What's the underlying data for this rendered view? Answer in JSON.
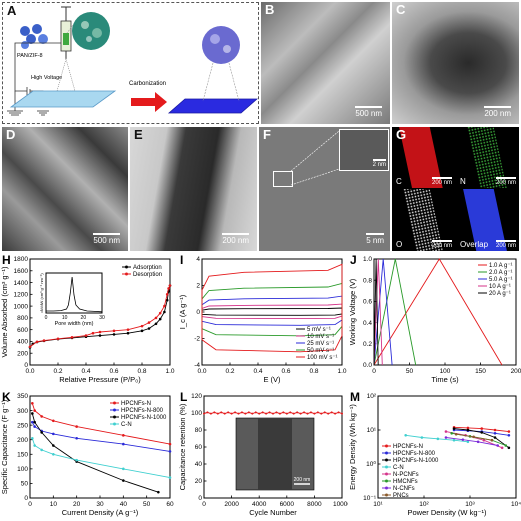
{
  "panelA": {
    "label": "A",
    "pan_zif_label": "PAN/ZIF-8",
    "voltage_label": "High Voltage",
    "arrow_label": "Carbonization"
  },
  "panelB": {
    "label": "B",
    "scale": "500 nm"
  },
  "panelC": {
    "label": "C",
    "scale": "200 nm"
  },
  "panelD": {
    "label": "D",
    "scale": "500 nm"
  },
  "panelE": {
    "label": "E",
    "scale": "200 nm"
  },
  "panelF": {
    "label": "F",
    "scale": "5 nm",
    "inset_scale": "2 nm"
  },
  "panelG": {
    "label": "G",
    "maps": [
      {
        "element": "C",
        "scale": "200 nm",
        "color": "#d8141a"
      },
      {
        "element": "N",
        "scale": "200 nm",
        "color": "#2a8a2a"
      },
      {
        "element": "O",
        "scale": "200 nm",
        "color": "#cfcfcf"
      },
      {
        "element": "Overlap",
        "scale": "200 nm",
        "color": "#2a3ad8"
      }
    ]
  },
  "colors": {
    "adsorption": "#000000",
    "desorption": "#e41a1c"
  },
  "chart_data": [
    {
      "panel": "H",
      "type": "line",
      "xlabel": "Relative Pressure (P/P₀)",
      "ylabel": "Volume Absorbed (cm³ g⁻¹)",
      "xlim": [
        0,
        1
      ],
      "ylim": [
        0,
        1800
      ],
      "xticks": [
        "0.0",
        "0.2",
        "0.4",
        "0.6",
        "0.8",
        "1.0"
      ],
      "yticks": [
        "0",
        "200",
        "400",
        "600",
        "800",
        "1000",
        "1200",
        "1400",
        "1600",
        "1800"
      ],
      "series": [
        {
          "name": "Adsorption",
          "color": "#000000",
          "x": [
            0.0,
            0.02,
            0.05,
            0.1,
            0.2,
            0.3,
            0.4,
            0.5,
            0.6,
            0.7,
            0.8,
            0.85,
            0.9,
            0.93,
            0.96,
            0.98,
            0.99,
            1.0
          ],
          "y": [
            300,
            360,
            390,
            410,
            440,
            460,
            480,
            500,
            520,
            540,
            580,
            620,
            700,
            780,
            900,
            1100,
            1250,
            1350
          ]
        },
        {
          "name": "Desorption",
          "color": "#e41a1c",
          "x": [
            1.0,
            0.99,
            0.98,
            0.96,
            0.93,
            0.9,
            0.85,
            0.8,
            0.7,
            0.6,
            0.5,
            0.45,
            0.4,
            0.3,
            0.2,
            0.1,
            0.05,
            0.0
          ],
          "y": [
            1350,
            1300,
            1200,
            1000,
            880,
            800,
            720,
            660,
            600,
            580,
            560,
            540,
            500,
            470,
            445,
            415,
            395,
            310
          ]
        }
      ],
      "inset": {
        "xlabel": "Pore width (nm)",
        "ylabel": "dV/dW (cm³ g⁻¹ nm⁻¹)",
        "xticks": [
          "0",
          "10",
          "20",
          "30"
        ],
        "x": [
          0,
          4,
          8,
          11,
          12,
          13,
          14,
          15,
          16,
          18,
          22,
          26,
          30
        ],
        "y": [
          0.05,
          0.05,
          0.06,
          0.1,
          0.2,
          0.5,
          0.9,
          0.45,
          0.2,
          0.1,
          0.05,
          0.04,
          0.03
        ]
      },
      "legend": "top-left"
    },
    {
      "panel": "I",
      "type": "line",
      "xlabel": "E (V)",
      "ylabel": "I_c (A g⁻¹)",
      "xlim": [
        0,
        1
      ],
      "ylim": [
        -4,
        4
      ],
      "xticks": [
        "0.0",
        "0.2",
        "0.4",
        "0.6",
        "0.8",
        "1.0"
      ],
      "yticks": [
        "-4",
        "-2",
        "0",
        "2",
        "4"
      ],
      "series": [
        {
          "name": "5 mV s⁻¹",
          "color": "#000000",
          "current": 0.25
        },
        {
          "name": "10 mV s⁻¹",
          "color": "#d4338a",
          "current": 0.5
        },
        {
          "name": "25 mV s⁻¹",
          "color": "#2a2ad8",
          "current": 1.0
        },
        {
          "name": "50 mV s⁻¹",
          "color": "#2a9a2a",
          "current": 1.8
        },
        {
          "name": "100 mV s⁻¹",
          "color": "#e41a1c",
          "current": 3.0
        }
      ],
      "legend": "bottom-right"
    },
    {
      "panel": "J",
      "type": "line",
      "xlabel": "Time (s)",
      "ylabel": "Working Voltage (V)",
      "xlim": [
        0,
        200
      ],
      "ylim": [
        0,
        1.0
      ],
      "xticks": [
        "0",
        "50",
        "100",
        "150",
        "200"
      ],
      "yticks": [
        "0.0",
        "0.2",
        "0.4",
        "0.6",
        "0.8",
        "1.0"
      ],
      "series": [
        {
          "name": "1.0 A g⁻¹",
          "color": "#e41a1c",
          "half_time": 92
        },
        {
          "name": "2.0 A g⁻¹",
          "color": "#2a9a2a",
          "half_time": 30
        },
        {
          "name": "5.0 A g⁻¹",
          "color": "#2a2ad8",
          "half_time": 13
        },
        {
          "name": "10 A g⁻¹",
          "color": "#d4338a",
          "half_time": 6
        },
        {
          "name": "20 A g⁻¹",
          "color": "#000000",
          "half_time": 3
        }
      ],
      "legend": "top-right"
    },
    {
      "panel": "K",
      "type": "line",
      "xlabel": "Current Density (A g⁻¹)",
      "ylabel": "Specific Capacitance (F g⁻¹)",
      "xlim": [
        0,
        60
      ],
      "ylim": [
        0,
        350
      ],
      "xticks": [
        "0",
        "10",
        "20",
        "30",
        "40",
        "50",
        "60"
      ],
      "yticks": [
        "0",
        "50",
        "100",
        "150",
        "200",
        "250",
        "300",
        "350"
      ],
      "series": [
        {
          "name": "HPCNFs-N",
          "color": "#e41a1c",
          "x": [
            1,
            2,
            5,
            10,
            20,
            40,
            60
          ],
          "y": [
            325,
            300,
            280,
            265,
            245,
            215,
            185
          ]
        },
        {
          "name": "HPCNFs-N-800",
          "color": "#2a2ad8",
          "x": [
            1,
            2,
            5,
            10,
            20,
            40,
            60
          ],
          "y": [
            260,
            245,
            230,
            220,
            205,
            185,
            160
          ]
        },
        {
          "name": "HPCNFs-N-1000",
          "color": "#000000",
          "x": [
            1,
            2,
            5,
            10,
            20,
            40,
            55
          ],
          "y": [
            290,
            260,
            225,
            180,
            125,
            60,
            20
          ]
        },
        {
          "name": "C-N",
          "color": "#40d0d0",
          "x": [
            1,
            2,
            5,
            10,
            20,
            40,
            60
          ],
          "y": [
            205,
            180,
            165,
            150,
            130,
            100,
            70
          ]
        }
      ],
      "legend": "top-right"
    },
    {
      "panel": "L",
      "type": "line",
      "xlabel": "Cycle Number",
      "ylabel": "Capacitance retention (%)",
      "xlim": [
        0,
        10000
      ],
      "ylim": [
        0,
        120
      ],
      "xticks": [
        "0",
        "2000",
        "4000",
        "6000",
        "8000",
        "10000"
      ],
      "yticks": [
        "0",
        "20",
        "40",
        "60",
        "80",
        "100",
        "120"
      ],
      "series": [
        {
          "name": "",
          "color": "#e41a1c",
          "level": 100
        }
      ],
      "inset_scale": "200 nm"
    },
    {
      "panel": "M",
      "type": "scatter",
      "xlabel": "Power Density (W kg⁻¹)",
      "ylabel": "Energy Density (Wh kg⁻¹)",
      "xscale": "log",
      "yscale": "log",
      "xlim": [
        10,
        10000
      ],
      "ylim": [
        0.1,
        100
      ],
      "xticks": [
        "10¹",
        "10²",
        "10³",
        "10⁴"
      ],
      "yticks": [
        "10⁻¹",
        "10⁰",
        "10¹",
        "10²"
      ],
      "series": [
        {
          "name": "HPCNFs-N",
          "color": "#e41a1c",
          "x": [
            450,
            900,
            1800,
            3500,
            7000
          ],
          "y": [
            12,
            11.5,
            11,
            10,
            9
          ]
        },
        {
          "name": "HPCNFs-N-800",
          "color": "#2a2ad8",
          "x": [
            450,
            900,
            1800,
            3500,
            7000
          ],
          "y": [
            10,
            9.5,
            9,
            8,
            7
          ]
        },
        {
          "name": "HPCNFs-N-1000",
          "color": "#000000",
          "x": [
            450,
            900,
            1800,
            3500,
            7000
          ],
          "y": [
            11,
            10,
            8.5,
            6,
            3
          ]
        },
        {
          "name": "C-N",
          "color": "#40d0d0",
          "x": [
            40,
            90,
            200,
            450,
            900
          ],
          "y": [
            7,
            6,
            5.5,
            5,
            4.5
          ]
        },
        {
          "name": "N-PCNFs",
          "color": "#d4338a",
          "x": [
            300,
            800,
            2000,
            5000
          ],
          "y": [
            9,
            7,
            5,
            3
          ]
        },
        {
          "name": "HMCNFs",
          "color": "#2a9a2a",
          "x": [
            400,
            1000,
            3000,
            6000
          ],
          "y": [
            8,
            6.5,
            5,
            3.5
          ]
        },
        {
          "name": "N-CNFs",
          "color": "#7b2ad8",
          "x": [
            300,
            700,
            1500,
            4000
          ],
          "y": [
            6,
            5.2,
            4.5,
            3.5
          ]
        },
        {
          "name": "PNCs",
          "color": "#8b5a2b",
          "x": [
            500,
            1200,
            3000
          ],
          "y": [
            7.5,
            6.3,
            5
          ]
        }
      ],
      "legend": "bottom-left"
    }
  ]
}
